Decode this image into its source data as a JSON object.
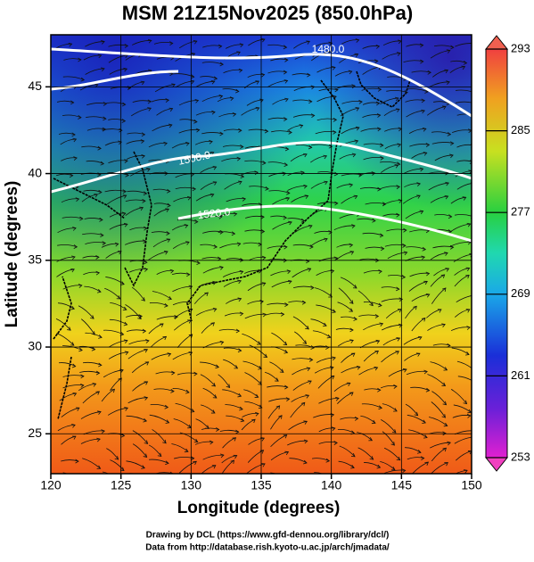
{
  "title": "MSM 21Z15Nov2025 (850.0hPa)",
  "x_axis": {
    "label": "Longitude (degrees)",
    "lim": [
      120,
      150
    ],
    "ticks": [
      120,
      125,
      130,
      135,
      140,
      145,
      150
    ]
  },
  "y_axis": {
    "label": "Latitude  (degrees)",
    "lim": [
      22.7,
      48
    ],
    "ticks": [
      25,
      30,
      35,
      40,
      45
    ]
  },
  "colorbar": {
    "lim": [
      253,
      293
    ],
    "ticks": [
      253,
      261,
      269,
      277,
      285,
      293
    ]
  },
  "contours": [
    {
      "label": "1480.0"
    },
    {
      "label": "1500.0"
    },
    {
      "label": "1520.0"
    }
  ],
  "footer": [
    "Drawing by DCL (https://www.gfd-dennou.org/library/dcl/)",
    "Data from http://database.rish.kyoto-u.ac.jp/arch/jmadata/"
  ]
}
